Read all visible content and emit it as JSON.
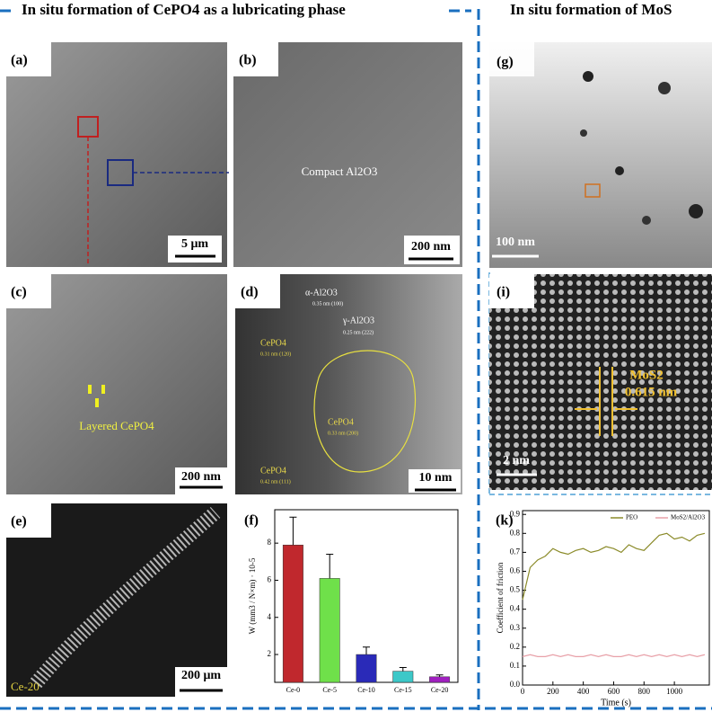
{
  "header": {
    "left": "In situ formation of CePO4 as a lubricating phase",
    "right": "In situ formation of MoS"
  },
  "panels": {
    "a": {
      "label": "(a)",
      "scale": "5 μm"
    },
    "b": {
      "label": "(b)",
      "scale": "200 nm",
      "text": "Compact Al2O3"
    },
    "c": {
      "label": "(c)",
      "scale": "200 nm",
      "text": "Layered CePO4"
    },
    "d": {
      "label": "(d)",
      "scale": "10 nm",
      "notes": [
        "α-Al2O3",
        "0.35 nm (100)",
        "γ-Al2O3",
        "0.25 nm (222)",
        "CePO4",
        "0.31 nm (120)",
        "CePO4",
        "0.33 nm (200)",
        "CePO4",
        "0.42 nm (111)"
      ]
    },
    "e": {
      "label": "(e)",
      "scale": "200 μm",
      "text": "Ce-20"
    },
    "f": {
      "label": "(f)"
    },
    "g": {
      "label": "(g)",
      "scale": "100 nm"
    },
    "i": {
      "label": "(i)",
      "scale": "2 nm",
      "notes": [
        "MoS2",
        "0.615 nm"
      ]
    },
    "k": {
      "label": "(k)"
    }
  },
  "chart_data": [
    {
      "type": "bar",
      "y_label": "W (mm3 / N×m) · 10-5",
      "categories": [
        "Ce-0",
        "Ce-5",
        "Ce-10",
        "Ce-15",
        "Ce-20"
      ],
      "values": [
        7.9,
        6.1,
        2.0,
        1.1,
        0.8
      ],
      "errors": [
        1.5,
        1.3,
        0.4,
        0.2,
        0.1
      ],
      "colors": [
        "#c0282d",
        "#6fe04a",
        "#2a2ab8",
        "#3cc8c8",
        "#a020c0"
      ],
      "ylim": [
        0.5,
        9.8
      ],
      "yticks": [
        2,
        4,
        6,
        8
      ]
    },
    {
      "type": "line",
      "x_label": "Time (s)",
      "y_label": "Coefficient of friction",
      "legend": "top-right",
      "x": [
        0,
        50,
        100,
        150,
        200,
        250,
        300,
        350,
        400,
        450,
        500,
        550,
        600,
        650,
        700,
        750,
        800,
        850,
        900,
        950,
        1000,
        1050,
        1100,
        1150,
        1200
      ],
      "series": [
        {
          "name": "PEO",
          "color": "#8b8b2a",
          "values": [
            0.45,
            0.62,
            0.66,
            0.68,
            0.72,
            0.7,
            0.69,
            0.71,
            0.72,
            0.7,
            0.71,
            0.73,
            0.72,
            0.7,
            0.74,
            0.72,
            0.71,
            0.75,
            0.79,
            0.8,
            0.77,
            0.78,
            0.76,
            0.79,
            0.8
          ]
        },
        {
          "name": "MoS2/Al2O3",
          "color": "#e8a0a8",
          "values": [
            0.15,
            0.16,
            0.15,
            0.15,
            0.16,
            0.15,
            0.16,
            0.15,
            0.15,
            0.16,
            0.15,
            0.16,
            0.15,
            0.15,
            0.16,
            0.15,
            0.16,
            0.15,
            0.16,
            0.15,
            0.16,
            0.15,
            0.16,
            0.15,
            0.16
          ]
        }
      ],
      "xlim": [
        0,
        1230
      ],
      "xticks": [
        0,
        200,
        400,
        600,
        800,
        1000
      ],
      "ylim": [
        0,
        0.92
      ],
      "yticks": [
        {
          "value": 0,
          "label": "0.0"
        },
        0.1,
        0.2,
        0.3,
        0.4,
        0.5,
        0.6,
        0.7,
        0.8,
        0.9
      ]
    }
  ]
}
